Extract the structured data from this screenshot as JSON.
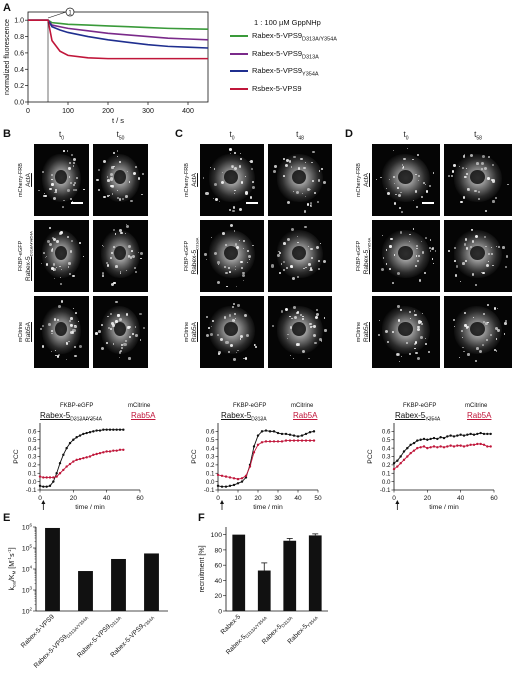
{
  "panels": {
    "A": "A",
    "B": "B",
    "C": "C",
    "D": "D",
    "E": "E",
    "F": "F"
  },
  "panelA": {
    "ylabel": "normalized fluorescence",
    "xlabel": "t / s",
    "annotation_marker": "1",
    "annotation_legend": "1 : 100 µM GppNHp",
    "legend": [
      {
        "main": "Rabex-5-VPS9",
        "sub": "D313A/Y354A",
        "color": "#3a9a3a"
      },
      {
        "main": "Rabex-5-VPS9",
        "sub": "D313A",
        "color": "#7a2a8a"
      },
      {
        "main": "Rabex-5-VPS9",
        "sub": "Y354A",
        "color": "#1f2f8f"
      },
      {
        "main": "Rsbex-5-VPS9",
        "sub": "",
        "color": "#c0163a"
      }
    ]
  },
  "micro": {
    "B": {
      "t0": "t",
      "t0sub": "0",
      "t1": "t",
      "t1sub": "50",
      "rows": [
        [
          "mCherry-FRB",
          "ActA"
        ],
        [
          "FKBP-eGFP",
          "Rabex-5",
          "D313A/Y354A"
        ],
        [
          "mCitrine",
          "Rab5A"
        ]
      ]
    },
    "C": {
      "t0": "t",
      "t0sub": "0",
      "t1": "t",
      "t1sub": "48",
      "rows": [
        [
          "mCherry-FRB",
          "ActA"
        ],
        [
          "FKBP-eGFP",
          "Rabex-5",
          "D313A"
        ],
        [
          "mCitrine",
          "Rab5A"
        ]
      ]
    },
    "D": {
      "t0": "t",
      "t0sub": "0",
      "t1": "t",
      "t1sub": "58",
      "rows": [
        [
          "mCherry-FRB",
          "ActA"
        ],
        [
          "FKBP-eGFP",
          "Rabex-5",
          "Y354A"
        ],
        [
          "mCitrine",
          "Rab5A"
        ]
      ]
    }
  },
  "pccB": {
    "label1": "FKBP-eGFP",
    "label2": "Rabex-5",
    "sub2": "D313A/Y354A",
    "label3": "mCitrine",
    "label4": "Rab5A"
  },
  "pccC": {
    "label1": "FKBP-eGFP",
    "label2": "Rabex-5",
    "sub2": "D313A",
    "label3": "mCitrine",
    "label4": "Rab5A"
  },
  "pccD": {
    "label1": "FKBP-eGFP",
    "label2": "Rabex-5",
    "sub2": "Y354A",
    "label3": "mCitrine",
    "label4": "Rab5A"
  },
  "chart_data": [
    {
      "type": "line",
      "panel": "A",
      "xlabel": "t / s",
      "ylabel": "normalized fluorescence",
      "xlim": [
        0,
        450
      ],
      "ylim": [
        0,
        1.1
      ],
      "xticks": [
        0,
        100,
        200,
        300,
        400
      ],
      "yticks": [
        0.0,
        0.2,
        0.4,
        0.6,
        0.8,
        1.0
      ],
      "x": [
        0,
        50,
        60,
        80,
        100,
        150,
        200,
        250,
        300,
        350,
        400,
        450
      ],
      "series": [
        {
          "name": "Rabex-5-VPS9 D313A/Y354A",
          "color": "#3a9a3a",
          "values": [
            1.0,
            1.0,
            0.97,
            0.96,
            0.95,
            0.94,
            0.93,
            0.92,
            0.91,
            0.9,
            0.895,
            0.89
          ]
        },
        {
          "name": "Rabex-5-VPS9 D313A",
          "color": "#7a2a8a",
          "values": [
            1.0,
            1.0,
            0.94,
            0.92,
            0.9,
            0.87,
            0.84,
            0.82,
            0.8,
            0.78,
            0.77,
            0.76
          ]
        },
        {
          "name": "Rabex-5-VPS9 Y354A",
          "color": "#1f2f8f",
          "values": [
            1.0,
            1.0,
            0.92,
            0.88,
            0.85,
            0.8,
            0.76,
            0.73,
            0.7,
            0.68,
            0.67,
            0.66
          ]
        },
        {
          "name": "Rsbex-5-VPS9",
          "color": "#c0163a",
          "values": [
            1.0,
            1.0,
            0.75,
            0.62,
            0.57,
            0.54,
            0.53,
            0.53,
            0.53,
            0.53,
            0.53,
            0.53
          ]
        }
      ]
    },
    {
      "type": "line",
      "panel": "B",
      "xlabel": "time / min",
      "ylabel": "PCC",
      "xlim": [
        0,
        60
      ],
      "ylim": [
        -0.1,
        0.7
      ],
      "xticks": [
        0,
        20,
        40,
        60
      ],
      "yticks": [
        -0.1,
        0.0,
        0.1,
        0.2,
        0.3,
        0.4,
        0.5,
        0.6
      ],
      "series": [
        {
          "name": "FKBP-eGFP Rabex-5 D313A/Y354A",
          "color": "#111111",
          "x": [
            0,
            2,
            4,
            6,
            8,
            10,
            12,
            14,
            16,
            18,
            20,
            22,
            24,
            26,
            28,
            30,
            32,
            34,
            36,
            38,
            40,
            42,
            44,
            46,
            48,
            50
          ],
          "values": [
            -0.05,
            -0.06,
            -0.06,
            -0.05,
            0.0,
            0.1,
            0.22,
            0.32,
            0.4,
            0.46,
            0.5,
            0.53,
            0.55,
            0.57,
            0.58,
            0.59,
            0.6,
            0.61,
            0.61,
            0.62,
            0.62,
            0.62,
            0.62,
            0.62,
            0.62,
            0.62
          ]
        },
        {
          "name": "mCitrine Rab5A",
          "color": "#c0163a",
          "x": [
            0,
            2,
            4,
            6,
            8,
            10,
            12,
            14,
            16,
            18,
            20,
            22,
            24,
            26,
            28,
            30,
            32,
            34,
            36,
            38,
            40,
            42,
            44,
            46,
            48,
            50
          ],
          "values": [
            0.06,
            0.05,
            0.05,
            0.05,
            0.05,
            0.06,
            0.1,
            0.14,
            0.18,
            0.21,
            0.24,
            0.26,
            0.27,
            0.28,
            0.29,
            0.3,
            0.32,
            0.33,
            0.34,
            0.35,
            0.36,
            0.36,
            0.37,
            0.37,
            0.38,
            0.38
          ]
        }
      ]
    },
    {
      "type": "line",
      "panel": "C",
      "xlabel": "time / min",
      "ylabel": "PCC",
      "xlim": [
        0,
        50
      ],
      "ylim": [
        -0.1,
        0.7
      ],
      "xticks": [
        0,
        10,
        20,
        30,
        40,
        50
      ],
      "yticks": [
        -0.1,
        0.0,
        0.1,
        0.2,
        0.3,
        0.4,
        0.5,
        0.6
      ],
      "series": [
        {
          "name": "FKBP-eGFP Rabex-5 D313A",
          "color": "#111111",
          "x": [
            0,
            2,
            4,
            6,
            8,
            10,
            12,
            14,
            16,
            18,
            20,
            22,
            24,
            26,
            28,
            30,
            32,
            34,
            36,
            38,
            40,
            42,
            44,
            46,
            48
          ],
          "values": [
            -0.05,
            -0.06,
            -0.06,
            -0.05,
            -0.04,
            -0.02,
            0.0,
            0.05,
            0.2,
            0.42,
            0.55,
            0.6,
            0.61,
            0.6,
            0.6,
            0.58,
            0.57,
            0.57,
            0.56,
            0.55,
            0.54,
            0.55,
            0.57,
            0.59,
            0.6
          ]
        },
        {
          "name": "mCitrine Rab5A",
          "color": "#c0163a",
          "x": [
            0,
            2,
            4,
            6,
            8,
            10,
            12,
            14,
            16,
            18,
            20,
            22,
            24,
            26,
            28,
            30,
            32,
            34,
            36,
            38,
            40,
            42,
            44,
            46,
            48
          ],
          "values": [
            0.08,
            0.07,
            0.06,
            0.05,
            0.04,
            0.03,
            0.04,
            0.07,
            0.18,
            0.35,
            0.44,
            0.47,
            0.48,
            0.48,
            0.48,
            0.48,
            0.48,
            0.49,
            0.49,
            0.49,
            0.49,
            0.49,
            0.49,
            0.49,
            0.49
          ]
        }
      ]
    },
    {
      "type": "line",
      "panel": "D",
      "xlabel": "time / min",
      "ylabel": "PCC",
      "xlim": [
        0,
        60
      ],
      "ylim": [
        -0.1,
        0.7
      ],
      "xticks": [
        0,
        20,
        40,
        60
      ],
      "yticks": [
        -0.1,
        0.0,
        0.1,
        0.2,
        0.3,
        0.4,
        0.5,
        0.6
      ],
      "series": [
        {
          "name": "FKBP-eGFP Rabex-5 Y354A",
          "color": "#111111",
          "x": [
            0,
            2,
            4,
            6,
            8,
            10,
            12,
            14,
            16,
            18,
            20,
            22,
            24,
            26,
            28,
            30,
            32,
            34,
            36,
            38,
            40,
            42,
            44,
            46,
            48,
            50,
            52,
            54,
            56,
            58
          ],
          "values": [
            0.22,
            0.25,
            0.3,
            0.36,
            0.4,
            0.44,
            0.46,
            0.49,
            0.5,
            0.51,
            0.5,
            0.51,
            0.52,
            0.51,
            0.53,
            0.52,
            0.54,
            0.55,
            0.54,
            0.55,
            0.56,
            0.55,
            0.56,
            0.57,
            0.56,
            0.57,
            0.58,
            0.57,
            0.57,
            0.57
          ]
        },
        {
          "name": "mCitrine Rab5A",
          "color": "#c0163a",
          "x": [
            0,
            2,
            4,
            6,
            8,
            10,
            12,
            14,
            16,
            18,
            20,
            22,
            24,
            26,
            28,
            30,
            32,
            34,
            36,
            38,
            40,
            42,
            44,
            46,
            48,
            50,
            52,
            54,
            56,
            58
          ],
          "values": [
            0.15,
            0.18,
            0.22,
            0.26,
            0.3,
            0.34,
            0.37,
            0.4,
            0.41,
            0.42,
            0.4,
            0.41,
            0.42,
            0.41,
            0.42,
            0.41,
            0.42,
            0.43,
            0.42,
            0.43,
            0.43,
            0.42,
            0.43,
            0.44,
            0.44,
            0.45,
            0.45,
            0.44,
            0.42,
            0.42
          ]
        }
      ]
    },
    {
      "type": "bar",
      "panel": "E",
      "ylabel": "k_cat/K_M [M^-1 s^-1]",
      "log_scale": true,
      "ylim": [
        100,
        1000000
      ],
      "yticks": [
        "10^2",
        "10^3",
        "10^4",
        "10^5",
        "10^6"
      ],
      "categories": [
        "Rabex-5-VPS9",
        "Rabex-5-VPS9 D313A/Y354A",
        "Rabex-5-VPS9 D313A",
        "Rabex-5-VPS9 Y354A"
      ],
      "values": [
        900000,
        8000,
        30000,
        55000
      ]
    },
    {
      "type": "bar",
      "panel": "F",
      "ylabel": "recruitment [%]",
      "ylim": [
        0,
        110
      ],
      "yticks": [
        0,
        20,
        40,
        60,
        80,
        100
      ],
      "categories": [
        "Rabex-5",
        "Rabex-5 D313A/Y354A",
        "Rabex-5 D313A",
        "Rabex-5 Y354A"
      ],
      "values": [
        100,
        53,
        92,
        99
      ],
      "errors": [
        0,
        10,
        3,
        2
      ]
    }
  ]
}
